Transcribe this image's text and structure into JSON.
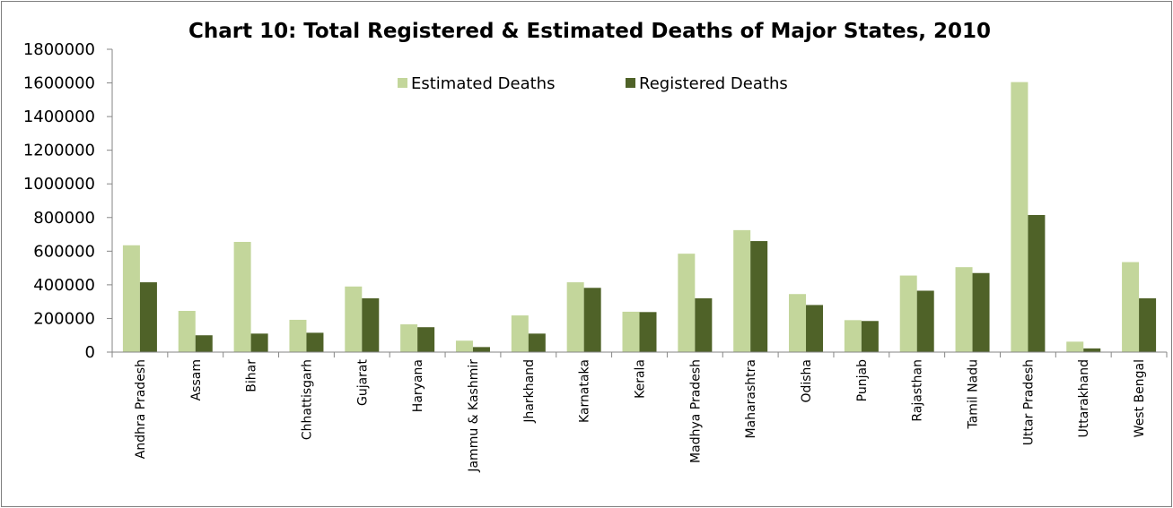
{
  "chart_data": {
    "type": "bar",
    "title": "Chart 10: Total Registered & Estimated Deaths of Major States, 2010",
    "xlabel": "",
    "ylabel": "",
    "ylim": [
      0,
      1800000
    ],
    "yticks": [
      "0",
      "200000",
      "400000",
      "600000",
      "800000",
      "1000000",
      "1200000",
      "1400000",
      "1600000",
      "1800000"
    ],
    "grid": false,
    "legend_position": "top-center",
    "categories": [
      "Andhra Pradesh",
      "Assam",
      "Bihar",
      "Chhattisgarh",
      "Gujarat",
      "Haryana",
      "Jammu & Kashmir",
      "Jharkhand",
      "Karnataka",
      "Kerala",
      "Madhya Pradesh",
      "Maharashtra",
      "Odisha",
      "Punjab",
      "Rajasthan",
      "Tamil Nadu",
      "Uttar Pradesh",
      "Uttarakhand",
      "West Bengal"
    ],
    "series": [
      {
        "name": "Estimated Deaths",
        "color": "#c3d69b",
        "values": [
          635000,
          245000,
          655000,
          192000,
          390000,
          165000,
          68000,
          218000,
          415000,
          240000,
          585000,
          725000,
          345000,
          190000,
          455000,
          505000,
          1605000,
          62000,
          535000
        ]
      },
      {
        "name": "Registered Deaths",
        "color": "#4f6228",
        "values": [
          415000,
          100000,
          110000,
          115000,
          320000,
          148000,
          30000,
          110000,
          382000,
          238000,
          320000,
          660000,
          280000,
          185000,
          365000,
          470000,
          815000,
          22000,
          320000
        ]
      }
    ]
  }
}
